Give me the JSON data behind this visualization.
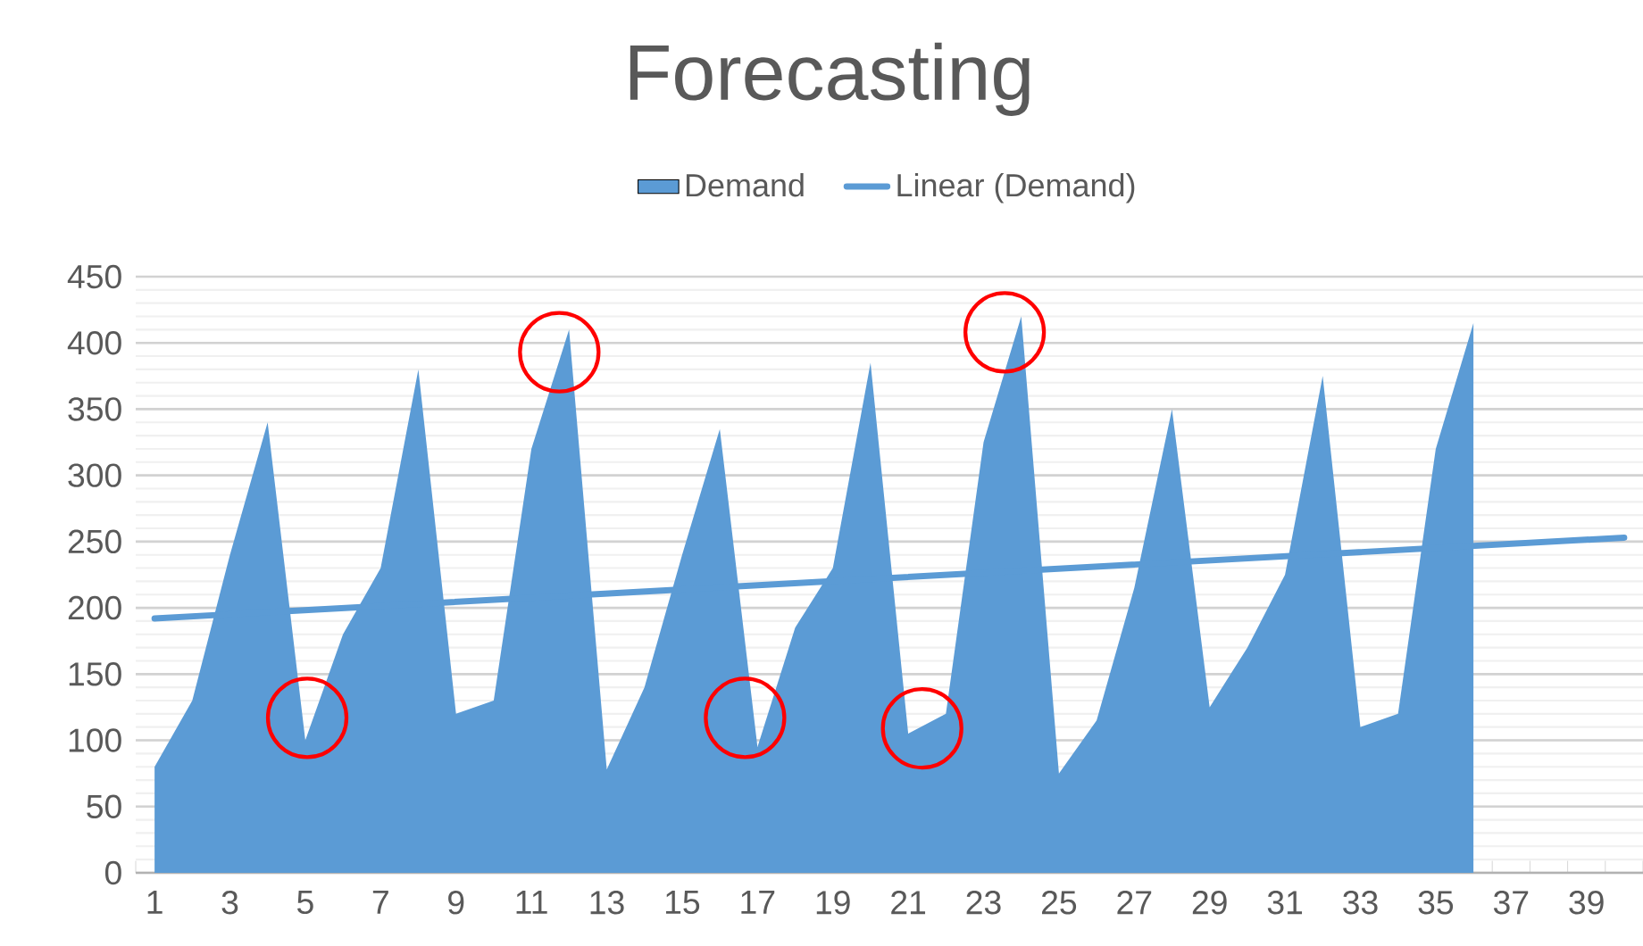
{
  "chart_data": {
    "type": "area",
    "title": "Forecasting",
    "x": [
      1,
      2,
      3,
      4,
      5,
      6,
      7,
      8,
      9,
      10,
      11,
      12,
      13,
      14,
      15,
      16,
      17,
      18,
      19,
      20,
      21,
      22,
      23,
      24,
      25,
      26,
      27,
      28,
      29,
      30,
      31,
      32,
      33,
      34,
      35,
      36
    ],
    "series": [
      {
        "name": "Demand",
        "color": "#5b9bd5",
        "values": [
          80,
          130,
          240,
          340,
          100,
          180,
          230,
          380,
          120,
          130,
          320,
          410,
          78,
          140,
          240,
          335,
          95,
          185,
          230,
          385,
          105,
          120,
          325,
          420,
          75,
          115,
          215,
          350,
          125,
          170,
          225,
          375,
          110,
          120,
          320,
          415
        ]
      },
      {
        "name": "Linear (Demand)",
        "type": "line",
        "color": "#5b9bd5",
        "x": [
          1,
          40
        ],
        "values": [
          192,
          253
        ]
      }
    ],
    "xlim": [
      0.5,
      40.5
    ],
    "xticks": [
      1,
      3,
      5,
      7,
      9,
      11,
      13,
      15,
      17,
      19,
      21,
      23,
      25,
      27,
      29,
      31,
      33,
      35,
      37,
      39
    ],
    "ylim": [
      0,
      450
    ],
    "yticks": [
      0,
      50,
      100,
      150,
      200,
      250,
      300,
      350,
      400,
      450
    ],
    "grid": "y",
    "legend": "top"
  }
}
